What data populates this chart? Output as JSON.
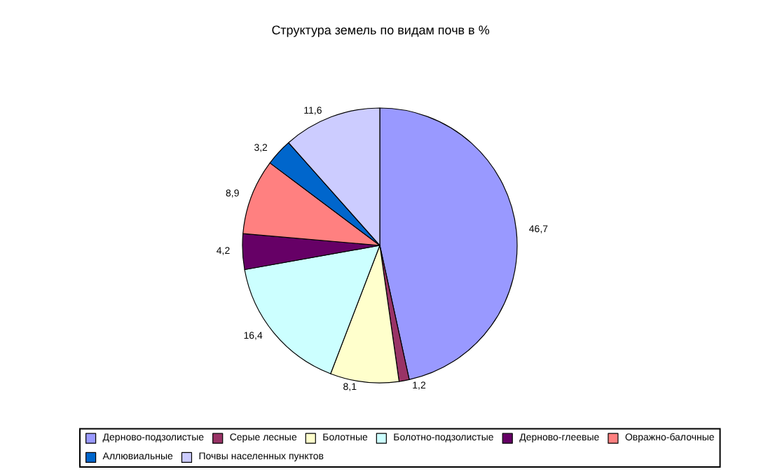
{
  "chart_data": {
    "type": "pie",
    "title": "Структура земель по видам почв в %",
    "categories": [
      "Дерново-подзолистые",
      "Серые лесные",
      "Болотные",
      "Болотно-подзолистые",
      "Дерново-глеевые",
      "Овражно-балочные",
      "Аллювиальные",
      "Почвы населенных пунктов"
    ],
    "values": [
      46.7,
      1.2,
      8.1,
      16.4,
      4.2,
      8.9,
      3.2,
      11.6
    ],
    "value_labels": [
      "46,7",
      "1,2",
      "8,1",
      "16,4",
      "4,2",
      "8,9",
      "3,2",
      "11,6"
    ],
    "colors": [
      "#9999ff",
      "#993366",
      "#ffffcc",
      "#ccffff",
      "#660066",
      "#ff8080",
      "#0066cc",
      "#ccccff"
    ],
    "legend": "bottom"
  }
}
